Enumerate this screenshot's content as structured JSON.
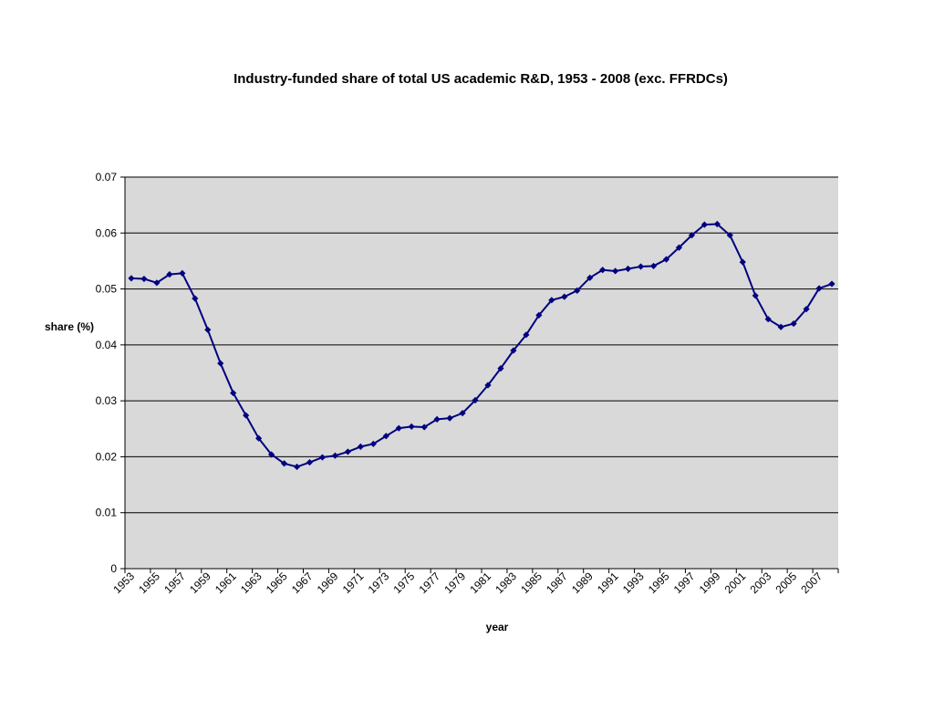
{
  "chart_data": {
    "type": "line",
    "title": "Industry-funded share of total US academic R&D, 1953 - 2008 (exc. FFRDCs)",
    "xlabel": "year",
    "ylabel": "share (%)",
    "ylim": [
      0,
      0.07
    ],
    "yticks": [
      "0",
      "0.01",
      "0.02",
      "0.03",
      "0.04",
      "0.05",
      "0.06",
      "0.07"
    ],
    "x": [
      1953,
      1954,
      1955,
      1956,
      1957,
      1958,
      1959,
      1960,
      1961,
      1962,
      1963,
      1964,
      1965,
      1966,
      1967,
      1968,
      1969,
      1970,
      1971,
      1972,
      1973,
      1974,
      1975,
      1976,
      1977,
      1978,
      1979,
      1980,
      1981,
      1982,
      1983,
      1984,
      1985,
      1986,
      1987,
      1988,
      1989,
      1990,
      1991,
      1992,
      1993,
      1994,
      1995,
      1996,
      1997,
      1998,
      1999,
      2000,
      2001,
      2002,
      2003,
      2004,
      2005,
      2006,
      2007,
      2008
    ],
    "xtick_labels": [
      "1953",
      "1955",
      "1957",
      "1959",
      "1961",
      "1963",
      "1965",
      "1967",
      "1969",
      "1971",
      "1973",
      "1975",
      "1977",
      "1979",
      "1981",
      "1983",
      "1985",
      "1987",
      "1989",
      "1991",
      "1993",
      "1995",
      "1997",
      "1999",
      "2001",
      "2003",
      "2005",
      "2007"
    ],
    "series": [
      {
        "values": [
          0.0519,
          0.0518,
          0.0511,
          0.0526,
          0.0528,
          0.0483,
          0.0427,
          0.0367,
          0.0314,
          0.0274,
          0.0233,
          0.0204,
          0.0188,
          0.0182,
          0.019,
          0.0199,
          0.0202,
          0.0209,
          0.0218,
          0.0223,
          0.0237,
          0.0251,
          0.0254,
          0.0253,
          0.0267,
          0.0269,
          0.0278,
          0.0301,
          0.0328,
          0.0358,
          0.039,
          0.0418,
          0.0453,
          0.048,
          0.0486,
          0.0497,
          0.052,
          0.0534,
          0.0532,
          0.0536,
          0.054,
          0.0541,
          0.0553,
          0.0574,
          0.0596,
          0.0615,
          0.0616,
          0.0596,
          0.0548,
          0.0488,
          0.0446,
          0.0432,
          0.0438,
          0.0464,
          0.0501,
          0.0509
        ]
      }
    ],
    "colors": {
      "line": "#000080",
      "plot_background": "#d9d9d9",
      "gridline": "#000000",
      "axis": "#000000"
    },
    "grid": true,
    "legend": "none"
  }
}
